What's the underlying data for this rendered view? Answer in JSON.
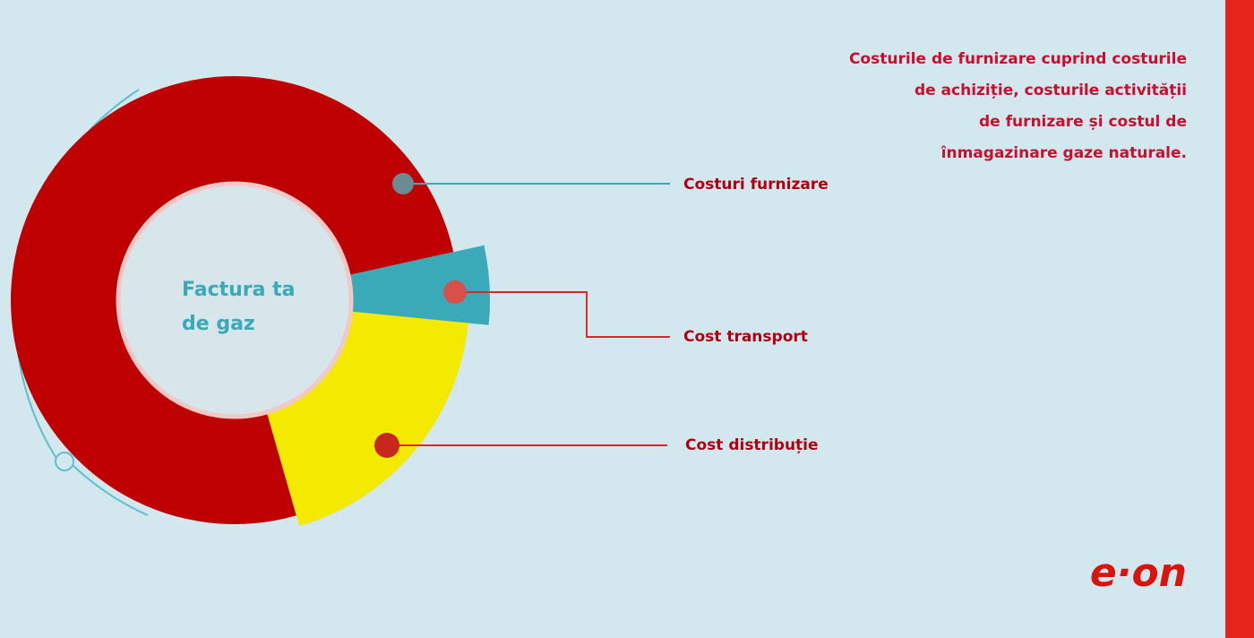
{
  "chart_data": {
    "type": "pie",
    "center_label": [
      "Factura ta",
      "de gaz"
    ],
    "categories": [
      "Costuri furnizare",
      "Cost transport",
      "Cost distribuție"
    ],
    "values": [
      76,
      5,
      19
    ],
    "colors": [
      "#bf0000",
      "#3aa9b8",
      "#f3ea00"
    ],
    "annotation": [
      "Costurile de furnizare cuprind costurile",
      "de achiziție, costurile activității",
      "de furnizare și costul de",
      "înmagazinare gaze naturale."
    ],
    "logo": "e·on"
  }
}
